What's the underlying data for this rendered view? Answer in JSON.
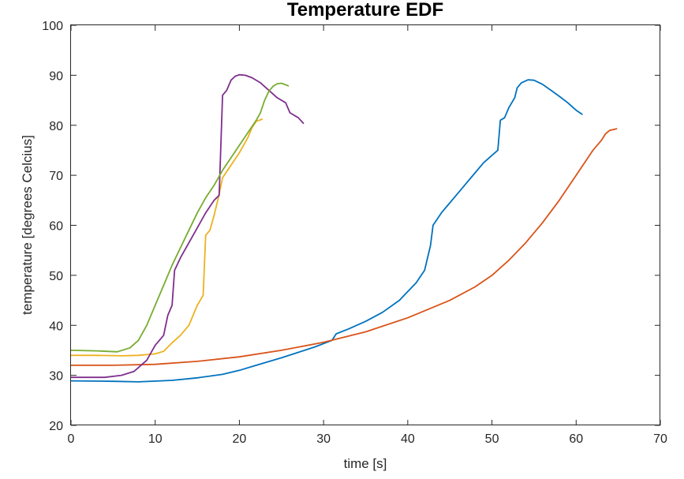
{
  "chart_data": {
    "type": "line",
    "title": "Temperature EDF",
    "xlabel": "time [s]",
    "ylabel": "temperature [degrees Celcius]",
    "xlim": [
      0,
      70
    ],
    "ylim": [
      20,
      100
    ],
    "xticks": [
      0,
      10,
      20,
      30,
      40,
      50,
      60,
      70
    ],
    "yticks": [
      20,
      30,
      40,
      50,
      60,
      70,
      80,
      90,
      100
    ],
    "grid": false,
    "legend": "none",
    "series": [
      {
        "color": "#0072BD",
        "points": [
          [
            0,
            28.9
          ],
          [
            5,
            28.8
          ],
          [
            8,
            28.7
          ],
          [
            12,
            29.0
          ],
          [
            15,
            29.5
          ],
          [
            18,
            30.2
          ],
          [
            20,
            31.0
          ],
          [
            22,
            32.0
          ],
          [
            25,
            33.5
          ],
          [
            27,
            34.6
          ],
          [
            29,
            35.7
          ],
          [
            31,
            37.0
          ],
          [
            31.5,
            38.3
          ],
          [
            33,
            39.3
          ],
          [
            35,
            40.8
          ],
          [
            37,
            42.6
          ],
          [
            39,
            45.0
          ],
          [
            41,
            48.5
          ],
          [
            42,
            51.0
          ],
          [
            42.7,
            56.0
          ],
          [
            43,
            60.0
          ],
          [
            44,
            62.5
          ],
          [
            45,
            64.5
          ],
          [
            46,
            66.5
          ],
          [
            47,
            68.5
          ],
          [
            48,
            70.5
          ],
          [
            49,
            72.5
          ],
          [
            50,
            74.0
          ],
          [
            50.7,
            75.0
          ],
          [
            51,
            81.0
          ],
          [
            51.5,
            81.5
          ],
          [
            52,
            83.5
          ],
          [
            52.7,
            85.5
          ],
          [
            53,
            87.5
          ],
          [
            53.5,
            88.5
          ],
          [
            54.3,
            89.1
          ],
          [
            55,
            89.0
          ],
          [
            56,
            88.2
          ],
          [
            57,
            87.0
          ],
          [
            58,
            85.8
          ],
          [
            59,
            84.5
          ],
          [
            60,
            83.0
          ],
          [
            60.7,
            82.2
          ]
        ]
      },
      {
        "color": "#D95319",
        "points": [
          [
            0,
            32.0
          ],
          [
            5,
            32.0
          ],
          [
            10,
            32.2
          ],
          [
            15,
            32.8
          ],
          [
            20,
            33.7
          ],
          [
            25,
            35.0
          ],
          [
            30,
            36.6
          ],
          [
            35,
            38.7
          ],
          [
            40,
            41.5
          ],
          [
            45,
            45.0
          ],
          [
            48,
            47.7
          ],
          [
            50,
            50.0
          ],
          [
            52,
            53.0
          ],
          [
            54,
            56.5
          ],
          [
            56,
            60.5
          ],
          [
            58,
            65.0
          ],
          [
            60,
            70.0
          ],
          [
            62,
            75.0
          ],
          [
            63,
            77.0
          ],
          [
            63.5,
            78.3
          ],
          [
            64,
            79.0
          ],
          [
            64.8,
            79.3
          ]
        ]
      },
      {
        "color": "#EDB120",
        "points": [
          [
            0,
            34.0
          ],
          [
            3,
            34.0
          ],
          [
            6,
            33.9
          ],
          [
            8,
            34.0
          ],
          [
            10,
            34.3
          ],
          [
            11,
            34.8
          ],
          [
            12,
            36.5
          ],
          [
            13,
            38.0
          ],
          [
            14,
            40.0
          ],
          [
            14.5,
            42.0
          ],
          [
            15,
            44.0
          ],
          [
            15.7,
            46.0
          ],
          [
            16,
            58.0
          ],
          [
            16.5,
            59.0
          ],
          [
            17,
            62.0
          ],
          [
            17.5,
            65.5
          ],
          [
            18,
            69.5
          ],
          [
            19,
            72.0
          ],
          [
            20,
            74.5
          ],
          [
            21,
            77.5
          ],
          [
            21.5,
            79.5
          ],
          [
            22,
            80.8
          ],
          [
            22.7,
            81.2
          ]
        ]
      },
      {
        "color": "#7E2F8E",
        "points": [
          [
            0,
            29.6
          ],
          [
            4,
            29.6
          ],
          [
            6,
            30.0
          ],
          [
            7.5,
            30.8
          ],
          [
            9,
            33.0
          ],
          [
            10,
            36.0
          ],
          [
            11,
            38.0
          ],
          [
            11.5,
            42.0
          ],
          [
            12,
            44.0
          ],
          [
            12.3,
            51.0
          ],
          [
            13,
            53.5
          ],
          [
            14,
            56.5
          ],
          [
            15,
            59.5
          ],
          [
            16,
            62.5
          ],
          [
            17,
            65.0
          ],
          [
            17.6,
            66.0
          ],
          [
            18,
            86.0
          ],
          [
            18.5,
            87.0
          ],
          [
            19,
            89.0
          ],
          [
            19.5,
            89.8
          ],
          [
            20,
            90.1
          ],
          [
            20.7,
            90.0
          ],
          [
            21.5,
            89.5
          ],
          [
            22.5,
            88.5
          ],
          [
            23.5,
            87.0
          ],
          [
            24.5,
            85.5
          ],
          [
            25.5,
            84.5
          ],
          [
            26,
            82.5
          ],
          [
            27,
            81.5
          ],
          [
            27.6,
            80.4
          ]
        ]
      },
      {
        "color": "#77AC30",
        "points": [
          [
            0,
            35.0
          ],
          [
            3,
            34.9
          ],
          [
            5.5,
            34.7
          ],
          [
            7,
            35.5
          ],
          [
            8,
            37.0
          ],
          [
            9,
            40.0
          ],
          [
            10,
            44.0
          ],
          [
            11,
            48.0
          ],
          [
            12,
            52.0
          ],
          [
            13,
            55.5
          ],
          [
            14,
            59.0
          ],
          [
            15,
            62.5
          ],
          [
            16,
            65.5
          ],
          [
            17,
            68.0
          ],
          [
            18,
            71.0
          ],
          [
            19,
            73.5
          ],
          [
            20,
            76.0
          ],
          [
            21,
            78.5
          ],
          [
            22,
            81.0
          ],
          [
            22.5,
            82.5
          ],
          [
            23,
            85.0
          ],
          [
            23.5,
            86.8
          ],
          [
            24,
            87.8
          ],
          [
            24.5,
            88.3
          ],
          [
            25,
            88.4
          ],
          [
            25.8,
            87.9
          ]
        ]
      }
    ]
  }
}
